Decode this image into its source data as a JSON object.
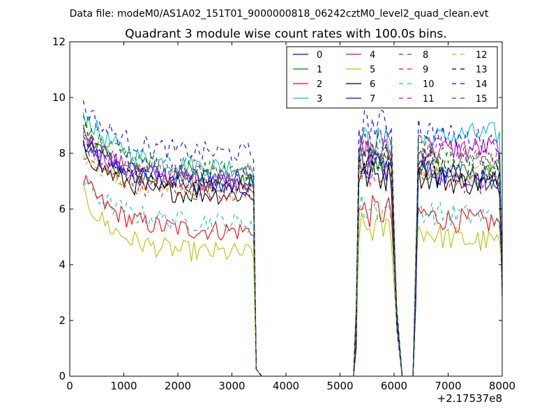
{
  "figure": {
    "suptitle": "Data file: modeM0/AS1A02_151T01_9000000818_06242cztM0_level2_quad_clean.evt",
    "offset_label": "+2.17537e8"
  },
  "chart_data": {
    "type": "line",
    "title": "Quadrant 3 module wise count rates with 100.0s bins.",
    "xlabel": "",
    "ylabel": "",
    "x_offset": 217537000,
    "xlim": [
      0,
      8000
    ],
    "ylim": [
      0,
      12
    ],
    "xticks": [
      0,
      1000,
      2000,
      3000,
      4000,
      5000,
      6000,
      7000,
      8000
    ],
    "yticks": [
      0,
      2,
      4,
      6,
      8,
      10,
      12
    ],
    "grid": false,
    "legend": {
      "placement": "top-right",
      "columns": 4
    },
    "segments": [
      {
        "start": 250,
        "end": 3350,
        "edge": "drop-to-zero"
      },
      {
        "start": 5350,
        "end": 5950,
        "edge": "both-ramps"
      },
      {
        "start": 6450,
        "end": 7950,
        "edge": "ramp-up"
      }
    ],
    "edges": {
      "zero_start": 3550,
      "zero_end": 5250,
      "ramp_5250": 1.0,
      "ramp_3450": 0.25,
      "gap_start": 6150,
      "gap_end": 6350,
      "ramp_6050": 1.5,
      "ramp_6350": 0.0
    },
    "series": [
      {
        "name": "0",
        "color": "#0000ff",
        "style": "solid",
        "levels": [
          8.3,
          7.1,
          7.6,
          7.0
        ]
      },
      {
        "name": "1",
        "color": "#008000",
        "style": "solid",
        "levels": [
          8.8,
          6.9,
          7.6,
          7.1
        ]
      },
      {
        "name": "2",
        "color": "#ff0000",
        "style": "solid",
        "levels": [
          7.0,
          5.2,
          5.9,
          5.5
        ]
      },
      {
        "name": "3",
        "color": "#00bfbf",
        "style": "solid",
        "levels": [
          9.5,
          7.5,
          8.4,
          8.7
        ]
      },
      {
        "name": "4",
        "color": "#bf00bf",
        "style": "solid",
        "levels": [
          8.8,
          7.0,
          8.0,
          8.2
        ]
      },
      {
        "name": "5",
        "color": "#bfbf00",
        "style": "solid",
        "levels": [
          6.5,
          4.4,
          5.3,
          4.8
        ]
      },
      {
        "name": "6",
        "color": "#000000",
        "style": "solid",
        "levels": [
          8.2,
          6.5,
          7.2,
          6.9
        ]
      },
      {
        "name": "7",
        "color": "#0000ff",
        "style": "solid",
        "levels": [
          8.6,
          6.8,
          7.5,
          7.1
        ]
      },
      {
        "name": "8",
        "color": "#008000",
        "style": "dashed",
        "levels": [
          9.0,
          7.4,
          8.0,
          7.6
        ]
      },
      {
        "name": "9",
        "color": "#ff0000",
        "style": "dashed",
        "levels": [
          8.0,
          6.6,
          7.3,
          6.9
        ]
      },
      {
        "name": "10",
        "color": "#00bfbf",
        "style": "dashed",
        "levels": [
          7.0,
          5.5,
          6.0,
          5.7
        ]
      },
      {
        "name": "11",
        "color": "#bf00bf",
        "style": "dashed",
        "levels": [
          8.6,
          7.4,
          8.3,
          7.9
        ]
      },
      {
        "name": "12",
        "color": "#bfbf00",
        "style": "dashed",
        "levels": [
          8.0,
          6.7,
          7.6,
          7.2
        ]
      },
      {
        "name": "13",
        "color": "#000000",
        "style": "dashed",
        "levels": [
          8.5,
          6.9,
          7.9,
          7.3
        ]
      },
      {
        "name": "14",
        "color": "#0000ff",
        "style": "dashed",
        "levels": [
          9.7,
          8.0,
          9.0,
          8.4
        ]
      },
      {
        "name": "15",
        "color": "#008000",
        "style": "dashed",
        "levels": [
          9.1,
          7.3,
          8.3,
          7.8
        ]
      }
    ]
  }
}
